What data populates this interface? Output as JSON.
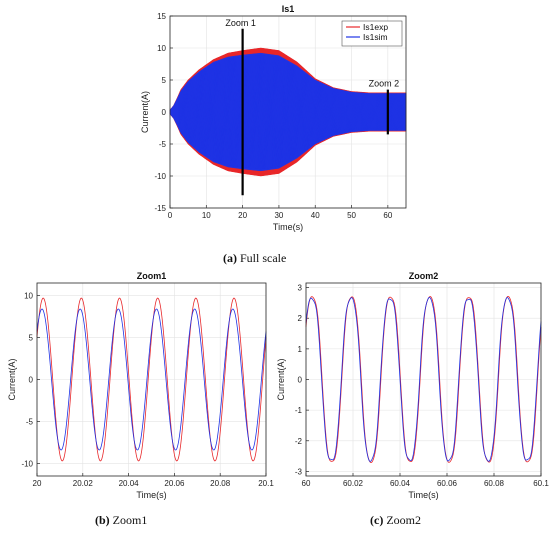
{
  "colors": {
    "exp": "#e8282b",
    "sim": "#1f33e5",
    "axis": "#262626",
    "grid": "#e3e3e3"
  },
  "captions": {
    "a_label": "(a)",
    "a_text": " Full scale",
    "b_label": "(b)",
    "b_text": " Zoom1",
    "c_label": "(c)",
    "c_text": " Zoom2"
  },
  "chart_data": [
    {
      "id": "full",
      "type": "line",
      "title": "Is1",
      "xlabel": "Time(s)",
      "ylabel": "Current(A)",
      "xlim": [
        0,
        65
      ],
      "ylim": [
        -15,
        15
      ],
      "xticks": [
        "0",
        "10",
        "20",
        "30",
        "40",
        "50",
        "60"
      ],
      "yticks": [
        "-15",
        "-10",
        "-5",
        "0",
        "5",
        "10",
        "15"
      ],
      "grid": true,
      "legend": "top-right",
      "series": [
        {
          "name": "Is1exp",
          "color": "#e8282b",
          "envelope_t": [
            0,
            1,
            2,
            3,
            5,
            8,
            12,
            16,
            20,
            25,
            30,
            35,
            40,
            45,
            50,
            55,
            60,
            65
          ],
          "envelope_amp": [
            0.3,
            1,
            2.2,
            3.5,
            5,
            6.6,
            8.2,
            9.2,
            9.6,
            10,
            9.6,
            7.8,
            5.2,
            3.8,
            3.2,
            3,
            3,
            3
          ]
        },
        {
          "name": "Is1sim",
          "color": "#1f33e5",
          "envelope_t": [
            0,
            1,
            2,
            3,
            5,
            8,
            12,
            16,
            20,
            25,
            30,
            35,
            40,
            45,
            50,
            55,
            60,
            65
          ],
          "envelope_amp": [
            0.3,
            1,
            2.1,
            3.3,
            4.8,
            6.3,
            7.8,
            8.6,
            8.9,
            9.2,
            8.8,
            7.2,
            5,
            3.7,
            3.1,
            2.9,
            2.9,
            2.9
          ]
        }
      ],
      "markers": [
        {
          "label": "Zoom 1",
          "x": 20,
          "y_range": [
            -13,
            13
          ]
        },
        {
          "label": "Zoom 2",
          "x": 60,
          "y_range": [
            -3.5,
            3.5
          ]
        }
      ]
    },
    {
      "id": "zoom1",
      "type": "line",
      "title": "Zoom1",
      "xlabel": "Time(s)",
      "ylabel": "Current(A)",
      "xlim": [
        20,
        20.1
      ],
      "ylim": [
        -11.5,
        11.5
      ],
      "xticks": [
        "20",
        "20.02",
        "20.04",
        "20.06",
        "20.08",
        "20.1"
      ],
      "yticks": [
        "-10",
        "-5",
        "0",
        "5",
        "10"
      ],
      "grid": true,
      "frequency_hz": 60,
      "series": [
        {
          "name": "exp",
          "color": "#e8282b",
          "amplitude": 9.7,
          "phase_offset": 0
        },
        {
          "name": "sim",
          "color": "#1f33e5",
          "amplitude": 8.4,
          "phase_offset": 0.2
        }
      ]
    },
    {
      "id": "zoom2",
      "type": "line",
      "title": "Zoom2",
      "xlabel": "Time(s)",
      "ylabel": "Current(A)",
      "xlim": [
        60,
        60.1
      ],
      "ylim": [
        -3.15,
        3.15
      ],
      "xticks": [
        "60",
        "60.02",
        "60.04",
        "60.06",
        "60.08",
        "60.1"
      ],
      "yticks": [
        "-3",
        "-2",
        "-1",
        "0",
        "1",
        "2",
        "3"
      ],
      "grid": true,
      "frequency_hz": 60,
      "series": [
        {
          "name": "exp",
          "color": "#e8282b",
          "amplitude": 2.9,
          "phase_offset": 0
        },
        {
          "name": "sim",
          "color": "#1f33e5",
          "amplitude": 2.85,
          "phase_offset": 0.08
        }
      ]
    }
  ]
}
